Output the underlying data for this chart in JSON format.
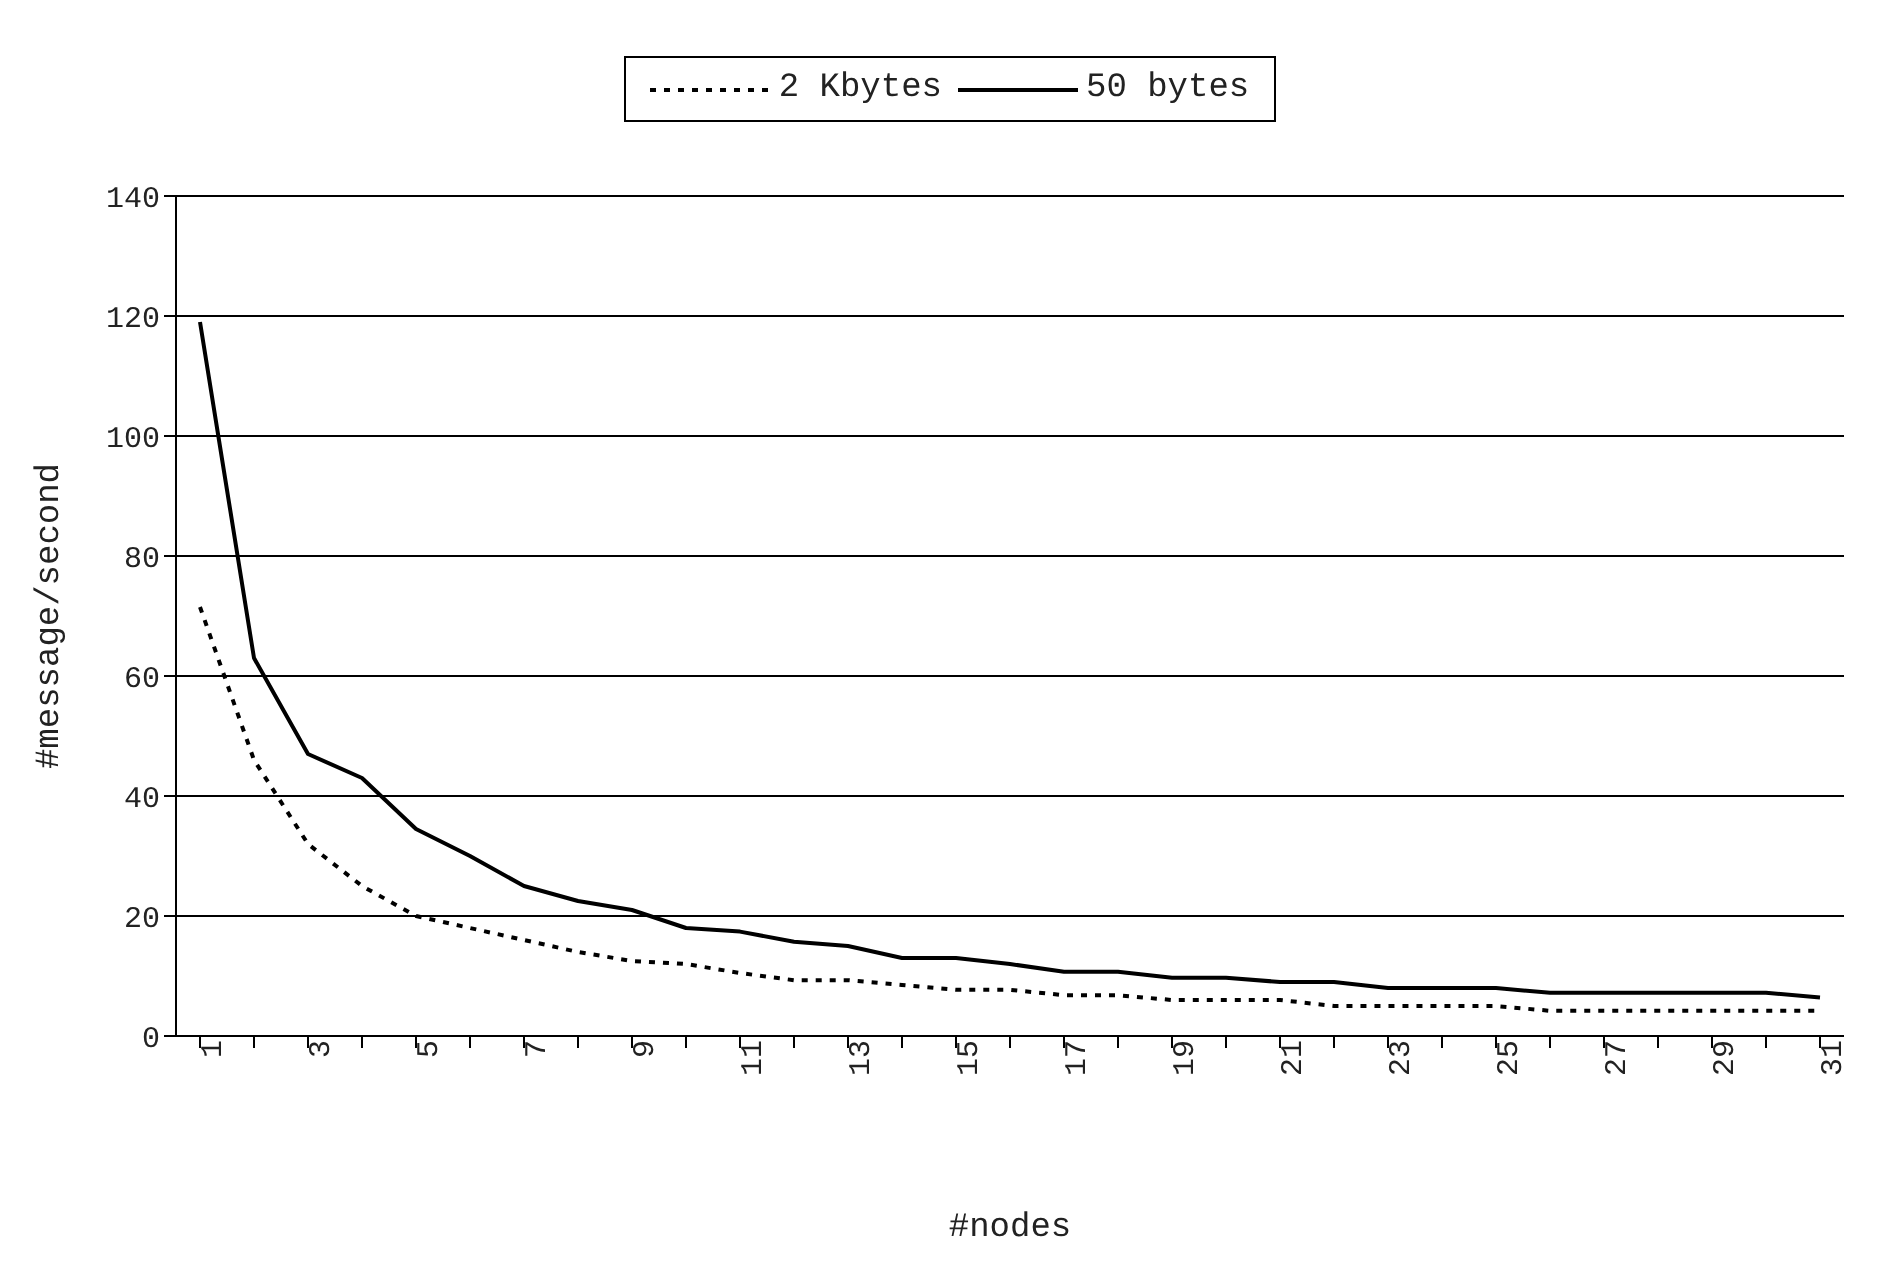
{
  "chart_data": {
    "type": "line",
    "xlabel": "#nodes",
    "ylabel": "#message/second",
    "categories": [
      "1",
      null,
      "3",
      null,
      "5",
      null,
      "7",
      null,
      "9",
      null,
      "11",
      null,
      "13",
      null,
      "15",
      null,
      "17",
      null,
      "19",
      null,
      "21",
      null,
      "23",
      null,
      "25",
      null,
      "27",
      null,
      "29",
      null,
      "31"
    ],
    "series": [
      {
        "name": "2 Kbytes",
        "color": "#000000",
        "line_style": "dotted",
        "values": [
          71.5,
          46,
          32,
          25,
          20,
          18,
          16,
          14,
          12.5,
          12,
          10.5,
          9.3,
          9.3,
          8.5,
          7.7,
          7.7,
          6.8,
          6.8,
          6,
          6,
          6,
          5,
          5,
          5,
          5,
          4.2,
          4.2,
          4.2,
          4.2,
          4.2,
          4.2
        ]
      },
      {
        "name": "50 bytes",
        "color": "#000000",
        "line_style": "solid",
        "values": [
          119,
          63,
          47,
          43,
          34.5,
          30,
          25,
          22.5,
          21,
          18,
          17.4,
          15.7,
          15,
          13,
          13,
          12,
          10.7,
          10.7,
          9.7,
          9.7,
          9,
          9,
          8,
          8,
          8,
          7.2,
          7.2,
          7.2,
          7.2,
          7.2,
          6.4
        ]
      }
    ],
    "ylim": [
      0,
      140
    ],
    "yticks": [
      0,
      20,
      40,
      60,
      80,
      100,
      120,
      140
    ],
    "grid": "y",
    "legend": "top",
    "marker": "none"
  }
}
